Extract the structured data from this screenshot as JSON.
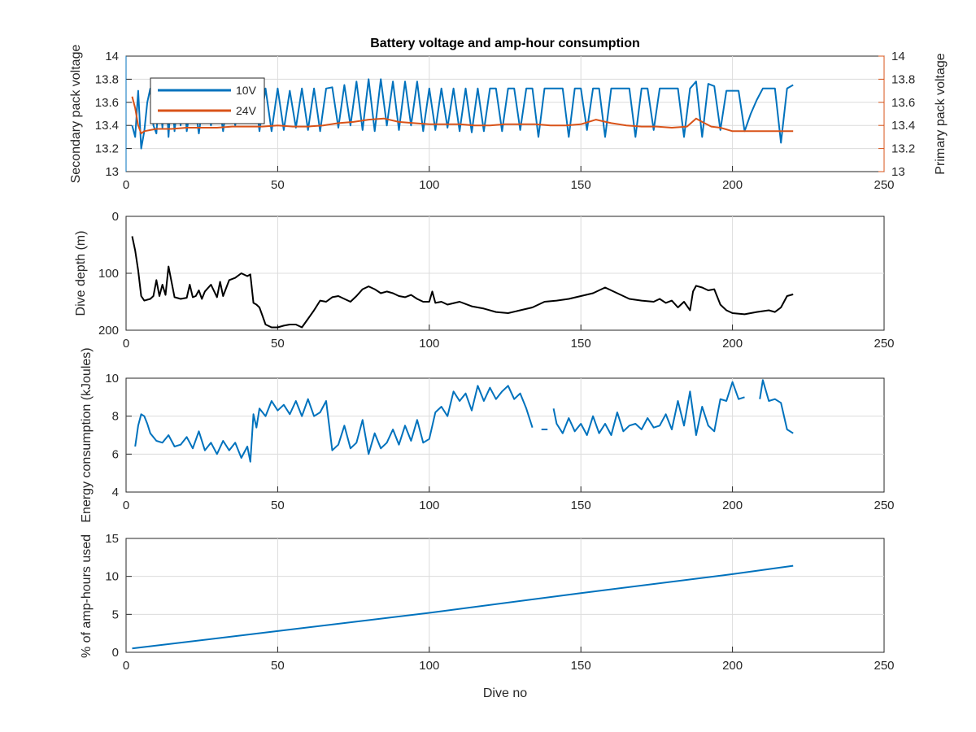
{
  "chart_data": [
    {
      "type": "line",
      "title": "Battery voltage and amp-hour consumption",
      "xlim": [
        0,
        250
      ],
      "xticks": [
        0,
        50,
        100,
        150,
        200,
        250
      ],
      "grid": true,
      "legend_placement": "top-left",
      "y_left": {
        "label": "Secondary pack voltage",
        "ylim": [
          13,
          14
        ],
        "ticks": [
          "13",
          "13.2",
          "13.4",
          "13.6",
          "13.8",
          "14"
        ],
        "color": "#0072BD"
      },
      "y_right": {
        "label": "Primary pack voltage",
        "ylim": [
          13,
          14
        ],
        "ticks": [
          "13",
          "13.2",
          "13.4",
          "13.6",
          "13.8",
          "14"
        ],
        "color": "#D95319"
      },
      "series": [
        {
          "name": "10V",
          "axis": "left",
          "color": "#0072BD",
          "x": [
            2,
            3,
            4,
            5,
            6,
            7,
            8,
            9,
            10,
            11,
            12,
            13,
            14,
            15,
            16,
            17,
            18,
            19,
            20,
            22,
            24,
            26,
            28,
            30,
            32,
            34,
            36,
            38,
            40,
            42,
            44,
            46,
            48,
            50,
            52,
            54,
            56,
            58,
            60,
            62,
            64,
            66,
            68,
            70,
            72,
            74,
            76,
            78,
            80,
            82,
            84,
            86,
            88,
            90,
            92,
            94,
            96,
            98,
            100,
            102,
            104,
            106,
            108,
            110,
            112,
            114,
            116,
            118,
            120,
            122,
            124,
            126,
            128,
            130,
            132,
            134,
            136,
            138,
            140,
            142,
            144,
            146,
            148,
            150,
            152,
            154,
            156,
            158,
            160,
            162,
            164,
            166,
            168,
            170,
            172,
            174,
            176,
            178,
            180,
            182,
            184,
            186,
            188,
            190,
            192,
            194,
            196,
            198,
            200,
            202,
            204,
            206,
            208,
            210,
            212,
            214,
            216,
            218,
            220
          ],
          "values": [
            13.4,
            13.3,
            13.7,
            13.2,
            13.35,
            13.6,
            13.72,
            13.4,
            13.33,
            13.7,
            13.38,
            13.8,
            13.3,
            13.72,
            13.35,
            13.6,
            13.4,
            13.75,
            13.35,
            13.7,
            13.33,
            13.72,
            13.4,
            13.73,
            13.35,
            13.72,
            13.4,
            13.72,
            13.45,
            13.78,
            13.35,
            13.72,
            13.35,
            13.72,
            13.36,
            13.7,
            13.38,
            13.72,
            13.36,
            13.72,
            13.35,
            13.72,
            13.73,
            13.38,
            13.75,
            13.4,
            13.78,
            13.36,
            13.8,
            13.35,
            13.8,
            13.4,
            13.78,
            13.36,
            13.78,
            13.4,
            13.78,
            13.35,
            13.72,
            13.36,
            13.72,
            13.38,
            13.72,
            13.35,
            13.72,
            13.34,
            13.72,
            13.35,
            13.72,
            13.72,
            13.35,
            13.72,
            13.72,
            13.36,
            13.72,
            13.72,
            13.3,
            13.72,
            13.72,
            13.72,
            13.72,
            13.3,
            13.72,
            13.72,
            13.36,
            13.72,
            13.72,
            13.3,
            13.72,
            13.72,
            13.72,
            13.72,
            13.3,
            13.72,
            13.72,
            13.36,
            13.72,
            13.72,
            13.72,
            13.72,
            13.3,
            13.72,
            13.78,
            13.3,
            13.76,
            13.74,
            13.36,
            13.7,
            13.7,
            13.7,
            13.35,
            13.5,
            13.62,
            13.72,
            13.72,
            13.72,
            13.25,
            13.72,
            13.75
          ]
        },
        {
          "name": "24V",
          "axis": "right",
          "color": "#D95319",
          "x": [
            2,
            3,
            4,
            5,
            6,
            8,
            10,
            15,
            20,
            25,
            30,
            35,
            40,
            45,
            50,
            55,
            60,
            65,
            70,
            75,
            80,
            85,
            90,
            95,
            100,
            105,
            110,
            115,
            120,
            125,
            130,
            135,
            140,
            145,
            150,
            155,
            160,
            165,
            170,
            175,
            180,
            185,
            188,
            190,
            193,
            196,
            200,
            205,
            210,
            215,
            220
          ],
          "values": [
            13.65,
            13.55,
            13.4,
            13.33,
            13.35,
            13.36,
            13.37,
            13.37,
            13.38,
            13.38,
            13.38,
            13.39,
            13.39,
            13.39,
            13.4,
            13.39,
            13.39,
            13.4,
            13.42,
            13.43,
            13.45,
            13.46,
            13.43,
            13.42,
            13.41,
            13.41,
            13.41,
            13.4,
            13.4,
            13.41,
            13.41,
            13.41,
            13.4,
            13.4,
            13.41,
            13.45,
            13.42,
            13.4,
            13.39,
            13.39,
            13.38,
            13.39,
            13.46,
            13.43,
            13.39,
            13.38,
            13.35,
            13.35,
            13.35,
            13.35,
            13.35
          ]
        }
      ]
    },
    {
      "type": "line",
      "xlim": [
        0,
        250
      ],
      "xticks": [
        0,
        50,
        100,
        150,
        200,
        250
      ],
      "ylim": [
        200,
        0
      ],
      "y_reversed": true,
      "yticks": [
        0,
        100,
        200
      ],
      "ylabel": "Dive depth (m)",
      "grid": true,
      "series": [
        {
          "color": "#000000",
          "x": [
            2,
            3,
            4,
            5,
            6,
            8,
            9,
            10,
            11,
            12,
            13,
            14,
            16,
            18,
            20,
            21,
            22,
            23,
            24,
            25,
            26,
            28,
            30,
            31,
            32,
            34,
            36,
            38,
            40,
            41,
            42,
            43,
            44,
            45,
            46,
            48,
            50,
            52,
            54,
            56,
            58,
            60,
            62,
            64,
            66,
            68,
            70,
            72,
            74,
            76,
            78,
            80,
            82,
            84,
            86,
            88,
            90,
            92,
            94,
            96,
            98,
            100,
            101,
            102,
            104,
            106,
            110,
            114,
            118,
            122,
            126,
            130,
            134,
            138,
            142,
            146,
            150,
            154,
            158,
            162,
            166,
            170,
            174,
            176,
            178,
            180,
            182,
            184,
            186,
            187,
            188,
            190,
            192,
            194,
            196,
            198,
            200,
            204,
            208,
            212,
            214,
            216,
            218,
            220
          ],
          "values": [
            35,
            60,
            95,
            140,
            148,
            145,
            140,
            112,
            140,
            120,
            138,
            88,
            142,
            145,
            143,
            120,
            142,
            140,
            130,
            145,
            132,
            120,
            142,
            115,
            140,
            112,
            108,
            100,
            105,
            102,
            152,
            155,
            160,
            175,
            190,
            195,
            195,
            192,
            190,
            190,
            195,
            180,
            165,
            148,
            150,
            142,
            140,
            145,
            150,
            140,
            128,
            123,
            128,
            135,
            132,
            135,
            140,
            142,
            138,
            145,
            150,
            150,
            132,
            152,
            150,
            155,
            150,
            158,
            162,
            168,
            170,
            165,
            160,
            150,
            148,
            145,
            140,
            135,
            125,
            135,
            145,
            148,
            150,
            145,
            152,
            148,
            160,
            150,
            165,
            132,
            122,
            125,
            130,
            128,
            155,
            165,
            170,
            172,
            168,
            165,
            168,
            160,
            140,
            137
          ]
        }
      ]
    },
    {
      "type": "line",
      "xlim": [
        0,
        250
      ],
      "xticks": [
        0,
        50,
        100,
        150,
        200,
        250
      ],
      "ylim": [
        4,
        10
      ],
      "yticks": [
        4,
        6,
        8,
        10
      ],
      "ylabel": "Energy consumption (kJoules)",
      "grid": true,
      "series": [
        {
          "color": "#0072BD",
          "segments": [
            {
              "x": [
                3,
                4,
                5,
                6,
                7,
                8,
                10,
                12,
                14,
                16,
                18,
                20,
                22,
                24,
                26,
                28,
                30,
                32,
                34,
                36,
                38,
                40,
                41,
                42,
                43,
                44,
                46,
                48,
                50,
                52,
                54,
                56,
                58,
                60,
                62,
                64,
                66,
                68,
                70,
                72,
                74,
                76,
                78,
                80,
                82,
                84,
                86,
                88,
                90,
                92,
                94,
                96,
                98,
                100,
                102,
                104,
                106,
                108,
                110,
                112,
                114,
                116,
                118,
                120,
                122,
                124,
                126,
                128,
                130,
                132,
                134
              ],
              "values": [
                6.4,
                7.5,
                8.1,
                8.0,
                7.6,
                7.1,
                6.7,
                6.6,
                7.0,
                6.4,
                6.5,
                6.9,
                6.3,
                7.2,
                6.2,
                6.6,
                6.0,
                6.7,
                6.2,
                6.6,
                5.8,
                6.4,
                5.6,
                8.1,
                7.4,
                8.4,
                8.0,
                8.8,
                8.3,
                8.6,
                8.1,
                8.8,
                8.0,
                8.9,
                8.0,
                8.2,
                8.8,
                6.2,
                6.5,
                7.5,
                6.3,
                6.6,
                7.8,
                6.0,
                7.1,
                6.3,
                6.6,
                7.3,
                6.5,
                7.5,
                6.7,
                7.8,
                6.6,
                6.8,
                8.2,
                8.5,
                8.0,
                9.3,
                8.8,
                9.2,
                8.3,
                9.6,
                8.8,
                9.5,
                8.9,
                9.3,
                9.6,
                8.9,
                9.2,
                8.4,
                7.4
              ]
            },
            {
              "x": [
                137,
                139
              ],
              "values": [
                7.3,
                7.3
              ]
            },
            {
              "x": [
                141,
                142,
                144,
                146,
                148,
                150,
                152,
                154,
                156,
                158,
                160,
                162,
                164,
                166,
                168,
                170,
                172,
                174,
                176,
                178,
                180,
                182,
                184,
                186,
                188,
                190,
                192,
                194,
                196,
                198,
                200,
                202,
                204
              ],
              "values": [
                8.4,
                7.6,
                7.1,
                7.9,
                7.2,
                7.6,
                7.0,
                8.0,
                7.1,
                7.6,
                7.0,
                8.2,
                7.2,
                7.5,
                7.6,
                7.3,
                7.9,
                7.4,
                7.5,
                8.1,
                7.3,
                8.8,
                7.5,
                9.3,
                7.0,
                8.5,
                7.5,
                7.2,
                8.9,
                8.8,
                9.8,
                8.9,
                9.0
              ]
            },
            {
              "x": [
                209,
                210,
                212,
                214,
                216,
                218,
                220
              ],
              "values": [
                8.9,
                9.9,
                8.8,
                8.9,
                8.7,
                7.3,
                7.1
              ]
            }
          ]
        }
      ]
    },
    {
      "type": "line",
      "xlim": [
        0,
        250
      ],
      "xticks": [
        0,
        50,
        100,
        150,
        200,
        250
      ],
      "ylim": [
        0,
        15
      ],
      "yticks": [
        0,
        5,
        10,
        15
      ],
      "ylabel": "% of amp-hours used",
      "xlabel": "Dive no",
      "grid": true,
      "series": [
        {
          "color": "#0072BD",
          "x": [
            2,
            50,
            100,
            150,
            200,
            220
          ],
          "values": [
            0.5,
            2.8,
            5.2,
            7.8,
            10.3,
            11.4
          ]
        }
      ]
    }
  ]
}
